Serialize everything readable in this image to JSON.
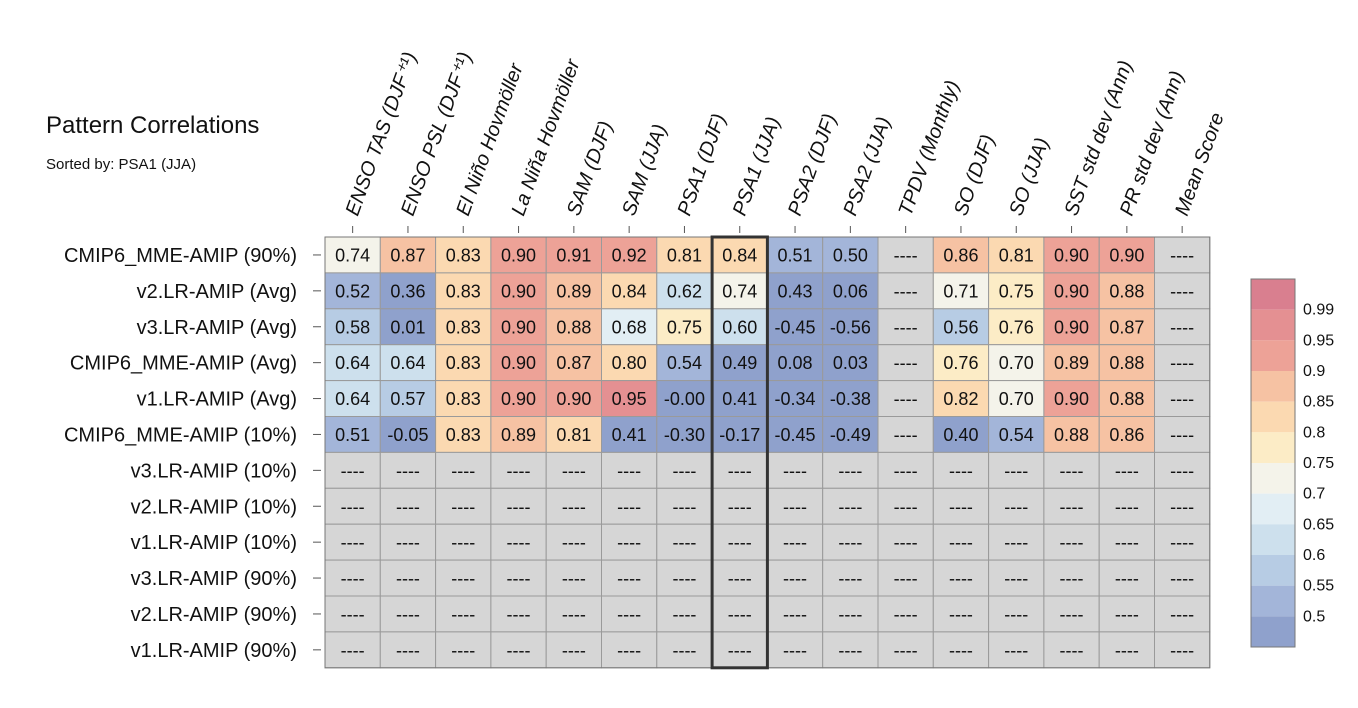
{
  "title": "Pattern Correlations",
  "subtitle": "Sorted by: PSA1 (JJA)",
  "chart_data": {
    "type": "heatmap",
    "columns": [
      "ENSO TAS (DJF⁺¹)",
      "ENSO PSL (DJF⁺¹)",
      "El Niño Hovmöller",
      "La Niña Hovmöller",
      "SAM (DJF)",
      "SAM (JJA)",
      "PSA1 (DJF)",
      "PSA1 (JJA)",
      "PSA2 (DJF)",
      "PSA2 (JJA)",
      "TPDV (Monthly)",
      "SO (DJF)",
      "SO (JJA)",
      "SST std dev (Ann)",
      "PR std dev (Ann)",
      "Mean Score"
    ],
    "rows": [
      "CMIP6_MME-AMIP (90%)",
      "v2.LR-AMIP (Avg)",
      "v3.LR-AMIP (Avg)",
      "CMIP6_MME-AMIP (Avg)",
      "v1.LR-AMIP (Avg)",
      "CMIP6_MME-AMIP (10%)",
      "v3.LR-AMIP (10%)",
      "v2.LR-AMIP (10%)",
      "v1.LR-AMIP (10%)",
      "v3.LR-AMIP (90%)",
      "v2.LR-AMIP (90%)",
      "v1.LR-AMIP (90%)"
    ],
    "values": [
      [
        "0.74",
        "0.87",
        "0.83",
        "0.90",
        "0.91",
        "0.92",
        "0.81",
        "0.84",
        "0.51",
        "0.50",
        "----",
        "0.86",
        "0.81",
        "0.90",
        "0.90",
        "----"
      ],
      [
        "0.52",
        "0.36",
        "0.83",
        "0.90",
        "0.89",
        "0.84",
        "0.62",
        "0.74",
        "0.43",
        "0.06",
        "----",
        "0.71",
        "0.75",
        "0.90",
        "0.88",
        "----"
      ],
      [
        "0.58",
        "0.01",
        "0.83",
        "0.90",
        "0.88",
        "0.68",
        "0.75",
        "0.60",
        "-0.45",
        "-0.56",
        "----",
        "0.56",
        "0.76",
        "0.90",
        "0.87",
        "----"
      ],
      [
        "0.64",
        "0.64",
        "0.83",
        "0.90",
        "0.87",
        "0.80",
        "0.54",
        "0.49",
        "0.08",
        "0.03",
        "----",
        "0.76",
        "0.70",
        "0.89",
        "0.88",
        "----"
      ],
      [
        "0.64",
        "0.57",
        "0.83",
        "0.90",
        "0.90",
        "0.95",
        "-0.00",
        "0.41",
        "-0.34",
        "-0.38",
        "----",
        "0.82",
        "0.70",
        "0.90",
        "0.88",
        "----"
      ],
      [
        "0.51",
        "-0.05",
        "0.83",
        "0.89",
        "0.81",
        "0.41",
        "-0.30",
        "-0.17",
        "-0.45",
        "-0.49",
        "----",
        "0.40",
        "0.54",
        "0.88",
        "0.86",
        "----"
      ],
      [
        "----",
        "----",
        "----",
        "----",
        "----",
        "----",
        "----",
        "----",
        "----",
        "----",
        "----",
        "----",
        "----",
        "----",
        "----",
        "----"
      ],
      [
        "----",
        "----",
        "----",
        "----",
        "----",
        "----",
        "----",
        "----",
        "----",
        "----",
        "----",
        "----",
        "----",
        "----",
        "----",
        "----"
      ],
      [
        "----",
        "----",
        "----",
        "----",
        "----",
        "----",
        "----",
        "----",
        "----",
        "----",
        "----",
        "----",
        "----",
        "----",
        "----",
        "----"
      ],
      [
        "----",
        "----",
        "----",
        "----",
        "----",
        "----",
        "----",
        "----",
        "----",
        "----",
        "----",
        "----",
        "----",
        "----",
        "----",
        "----"
      ],
      [
        "----",
        "----",
        "----",
        "----",
        "----",
        "----",
        "----",
        "----",
        "----",
        "----",
        "----",
        "----",
        "----",
        "----",
        "----",
        "----"
      ],
      [
        "----",
        "----",
        "----",
        "----",
        "----",
        "----",
        "----",
        "----",
        "----",
        "----",
        "----",
        "----",
        "----",
        "----",
        "----",
        "----"
      ]
    ],
    "highlighted_column": "PSA1 (JJA)",
    "missing_color": "#d6d6d6",
    "colorbar": {
      "labels": [
        "0.99",
        "0.95",
        "0.9",
        "0.85",
        "0.8",
        "0.75",
        "0.7",
        "0.65",
        "0.6",
        "0.55",
        "0.5"
      ],
      "levels": [
        0.5,
        0.55,
        0.6,
        0.65,
        0.7,
        0.75,
        0.8,
        0.85,
        0.9,
        0.95,
        0.99
      ],
      "colors": [
        "#8fa1cc",
        "#a3b5d9",
        "#b7cce4",
        "#cde0ed",
        "#e2eef4",
        "#f4f3ea",
        "#fcecc6",
        "#fbd9b1",
        "#f6c2a3",
        "#eda297",
        "#e49092",
        "#d97f8f"
      ]
    }
  }
}
